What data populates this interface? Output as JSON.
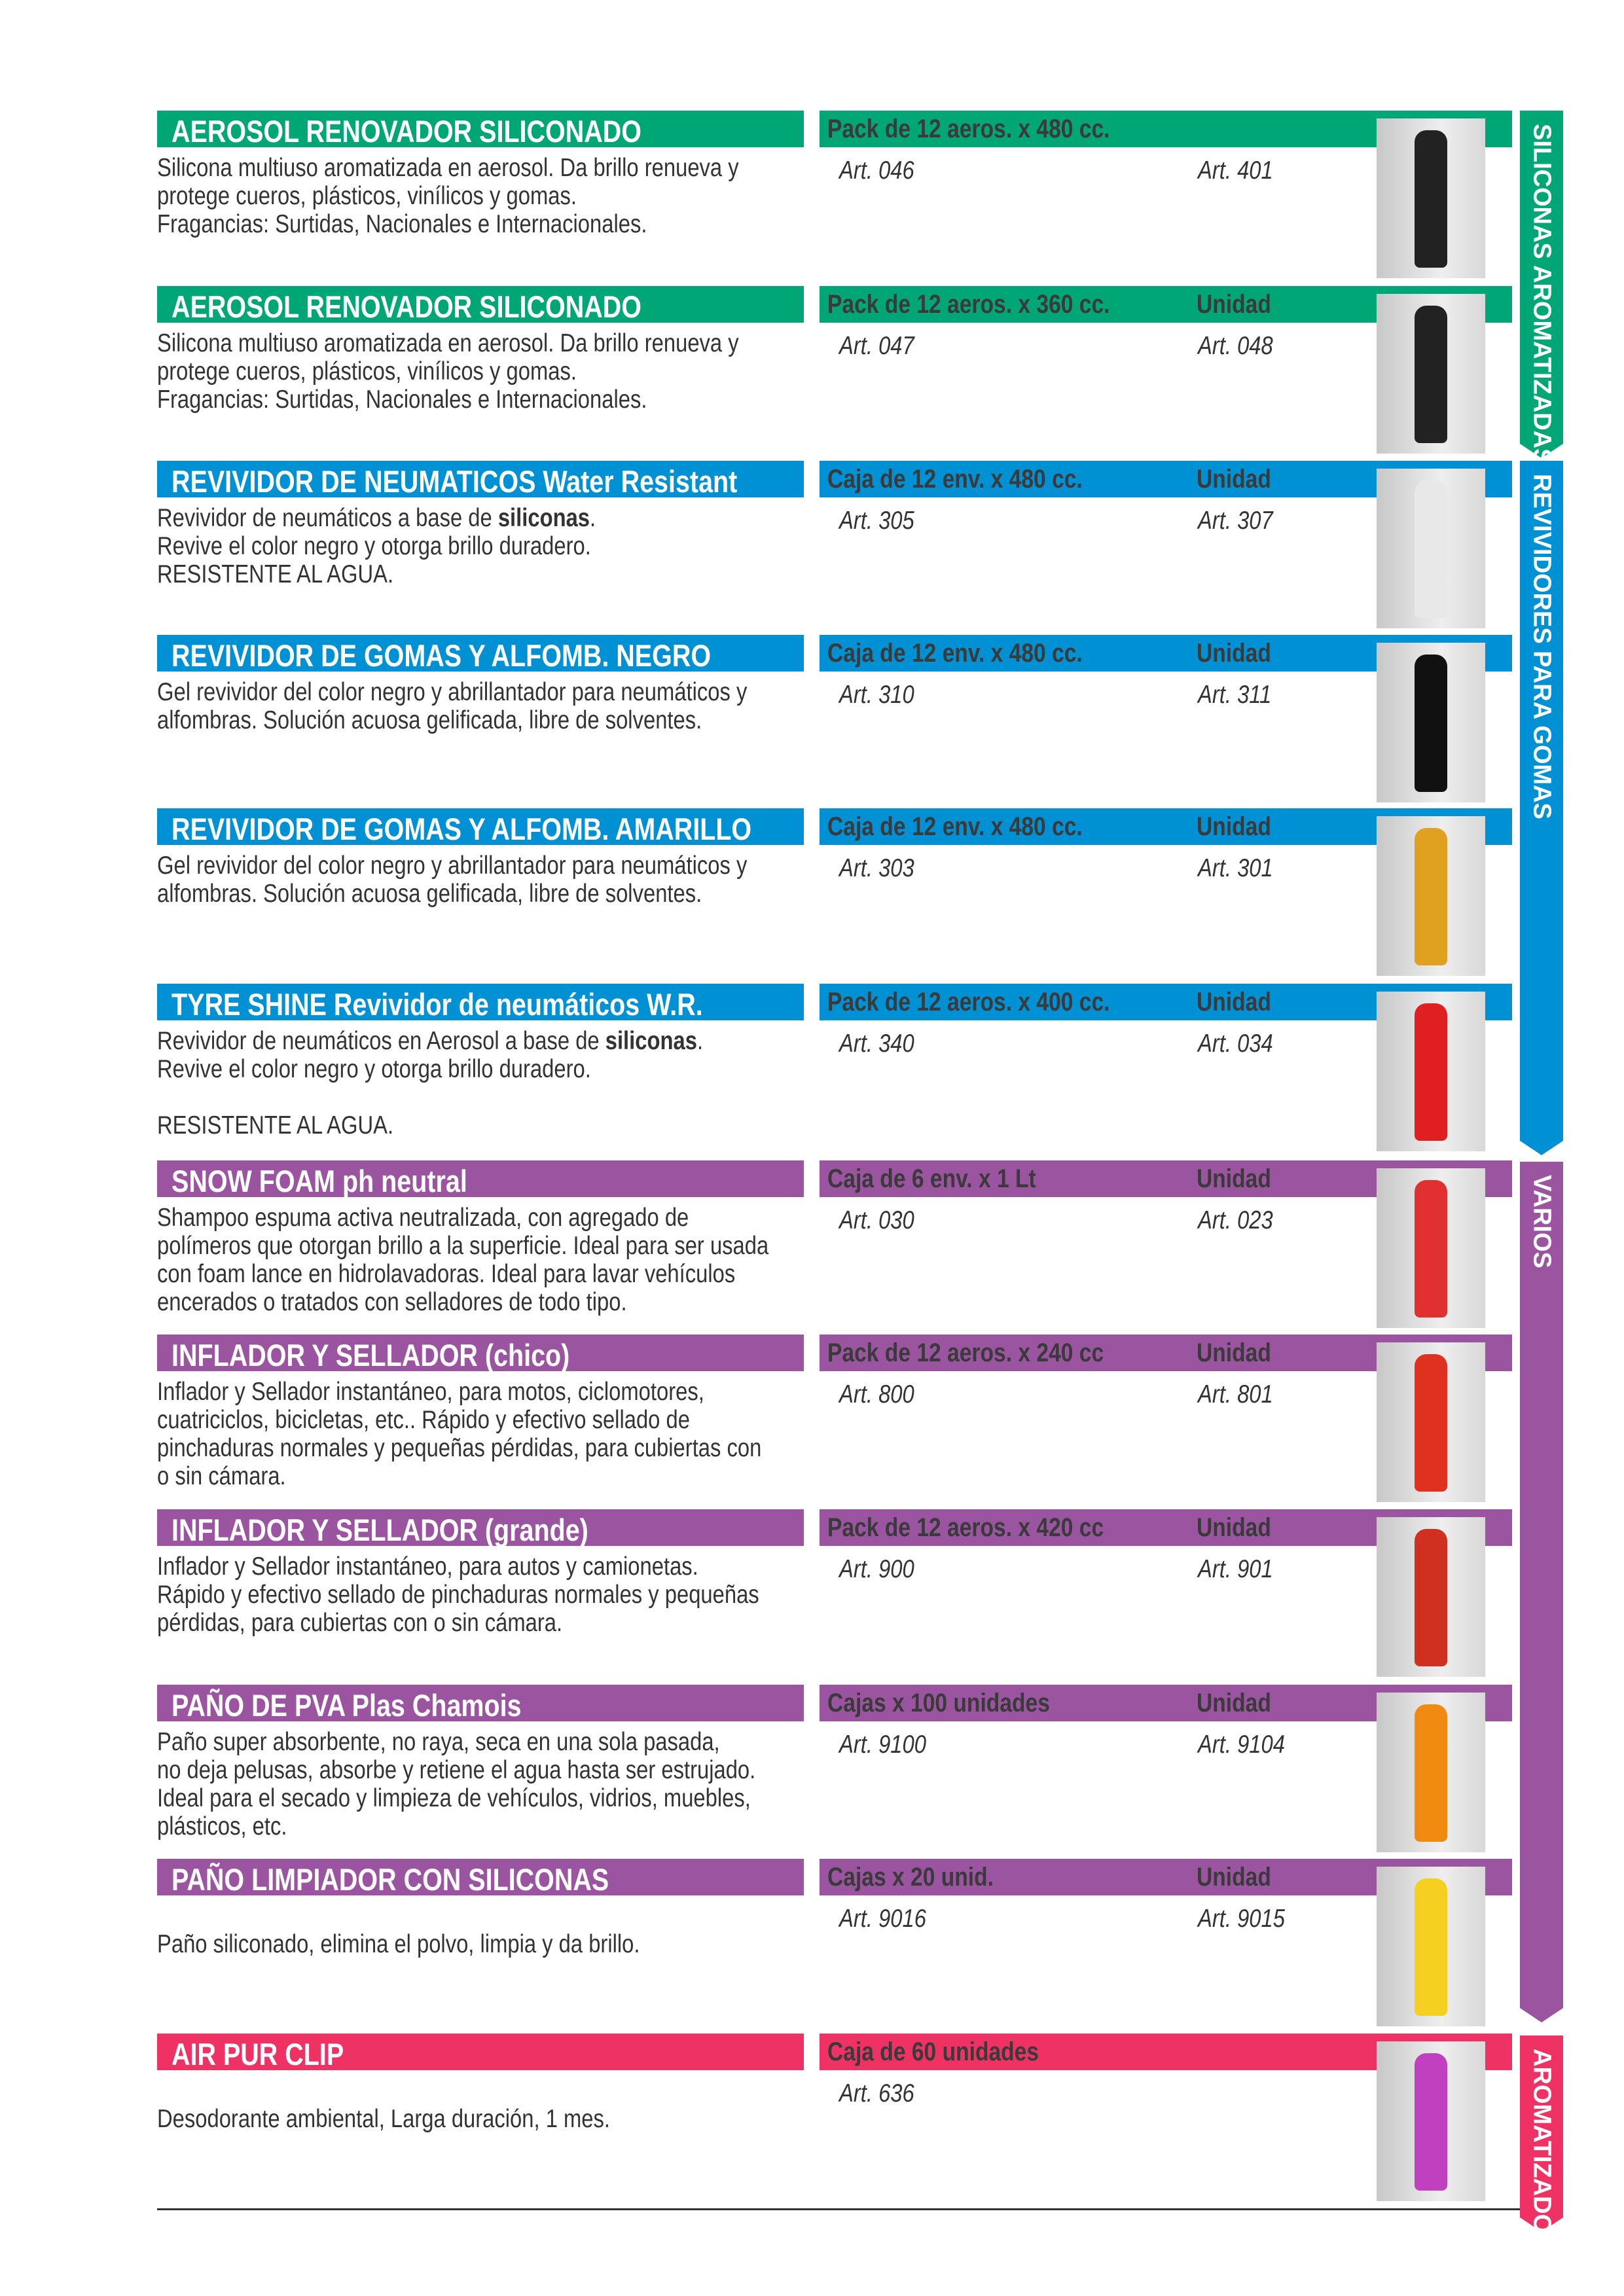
{
  "colors": {
    "green": "#00a676",
    "blue": "#0090d4",
    "purple": "#9b55a0",
    "pink": "#ee3364"
  },
  "sections": [
    {
      "label": "SILICONAS AROMATIZADAS",
      "color": "#00a676"
    },
    {
      "label": "REVIVIDORES PARA GOMAS",
      "color": "#0090d4"
    },
    {
      "label": "VARIOS",
      "color": "#9b55a0"
    },
    {
      "label": "AROMATIZADORES",
      "color": "#ee3364"
    }
  ],
  "products": [
    {
      "title": "AEROSOL RENOVADOR SILICONADO",
      "color": "#00a676",
      "pack": "Pack de 12 aeros. x 480 cc.",
      "unit": "",
      "art1": "Art. 046",
      "art2": "Art. 401",
      "bottle": "#222",
      "lines": [
        "Silicona multiuso aromatizada en aerosol. Da brillo renueva y",
        "protege cueros, plásticos, vinílicos y gomas.",
        "Fragancias: Surtidas, Nacionales e Internacionales."
      ]
    },
    {
      "title": "AEROSOL RENOVADOR SILICONADO",
      "color": "#00a676",
      "pack": "Pack de 12 aeros. x 360 cc.",
      "unit": "Unidad",
      "art1": "Art. 047",
      "art2": "Art. 048",
      "bottle": "#222",
      "lines": [
        "Silicona multiuso aromatizada en aerosol. Da brillo renueva y",
        "protege cueros, plásticos, vinílicos y gomas.",
        "Fragancias: Surtidas, Nacionales e Internacionales."
      ]
    },
    {
      "title": "REVIVIDOR DE NEUMATICOS Water Resistant",
      "color": "#0090d4",
      "pack": "Caja de 12 env. x 480 cc.",
      "unit": "Unidad",
      "art1": "Art. 305",
      "art2": "Art. 307",
      "bottle": "#e8e8e8",
      "lines": [
        "Revividor de neumáticos a base de |siliconas|.",
        "Revive el color negro y otorga brillo duradero.",
        "RESISTENTE AL AGUA."
      ]
    },
    {
      "title": "REVIVIDOR DE GOMAS Y ALFOMB. NEGRO",
      "color": "#0090d4",
      "pack": "Caja de 12 env. x 480 cc.",
      "unit": "Unidad",
      "art1": "Art. 310",
      "art2": "Art. 311",
      "bottle": "#111",
      "lines": [
        "Gel revividor del color negro y abrillantador para neumáticos y",
        "alfombras. Solución acuosa gelificada, libre de solventes."
      ]
    },
    {
      "title": "REVIVIDOR DE GOMAS Y ALFOMB. AMARILLO",
      "color": "#0090d4",
      "pack": "Caja de 12 env. x 480 cc.",
      "unit": "Unidad",
      "art1": "Art. 303",
      "art2": "Art. 301",
      "bottle": "#e0a020",
      "lines": [
        "Gel revividor del color negro y abrillantador para neumáticos y",
        "alfombras. Solución acuosa gelificada, libre de solventes."
      ]
    },
    {
      "title": "TYRE SHINE Revividor de neumáticos W.R.",
      "color": "#0090d4",
      "pack": "Pack de 12 aeros. x 400 cc.",
      "unit": "Unidad",
      "art1": "Art. 340",
      "art2": "Art. 034",
      "bottle": "#e02020",
      "lines": [
        "Revividor de neumáticos en Aerosol a base de |siliconas|.",
        "Revive el color negro y otorga brillo duradero.",
        "",
        "RESISTENTE AL AGUA."
      ]
    },
    {
      "title": "SNOW FOAM ph neutral",
      "color": "#9b55a0",
      "pack": "Caja de 6 env. x 1 Lt",
      "unit": "Unidad",
      "art1": "Art. 030",
      "art2": "Art. 023",
      "bottle": "#e03030",
      "lines": [
        "Shampoo espuma activa neutralizada, con agregado de",
        "polímeros que otorgan brillo a la superficie. Ideal para ser usada",
        "con foam lance en hidrolavadoras. Ideal para lavar vehículos",
        "encerados o tratados con selladores de todo tipo."
      ]
    },
    {
      "title": "INFLADOR Y SELLADOR (chico)",
      "color": "#9b55a0",
      "pack": "Pack de 12 aeros. x 240 cc",
      "unit": "Unidad",
      "art1": "Art. 800",
      "art2": "Art. 801",
      "bottle": "#e03020",
      "lines": [
        "Inflador y Sellador instantáneo, para motos, ciclomotores,",
        "cuatriciclos, bicicletas, etc.. Rápido y efectivo sellado de",
        "pinchaduras normales y pequeñas pérdidas, para cubiertas con",
        "o sin cámara."
      ]
    },
    {
      "title": "INFLADOR Y SELLADOR (grande)",
      "color": "#9b55a0",
      "pack": "Pack de 12 aeros. x 420 cc",
      "unit": "Unidad",
      "art1": "Art. 900",
      "art2": "Art. 901",
      "bottle": "#d03020",
      "lines": [
        "Inflador y Sellador instantáneo, para autos y camionetas.",
        "Rápido y efectivo sellado de pinchaduras normales y pequeñas",
        "pérdidas, para cubiertas con o sin cámara."
      ]
    },
    {
      "title": "PAÑO DE PVA Plas Chamois",
      "color": "#9b55a0",
      "pack": "Cajas x 100 unidades",
      "unit": "Unidad",
      "art1": "Art. 9100",
      "art2": "Art. 9104",
      "bottle": "#f08a10",
      "lines": [
        "Paño super absorbente, no raya, seca en una sola pasada,",
        "no deja pelusas, absorbe y retiene el agua hasta ser estrujado.",
        "Ideal para el secado y limpieza de vehículos, vidrios, muebles,",
        "plásticos, etc."
      ]
    },
    {
      "title": "PAÑO LIMPIADOR CON SILICONAS",
      "color": "#9b55a0",
      "pack": "Cajas x 20 unid.",
      "unit": "Unidad",
      "art1": "Art. 9016",
      "art2": "Art. 9015",
      "bottle": "#f5d020",
      "lines": [
        "",
        "Paño siliconado, elimina el polvo, limpia y da brillo."
      ]
    },
    {
      "title": "AIR PUR CLIP",
      "color": "#ee3364",
      "pack": "Caja de 60 unidades",
      "unit": "",
      "art1": "Art. 636",
      "art2": "",
      "bottle": "#c040c0",
      "lines": [
        "",
        "Desodorante ambiental, Larga duración, 1 mes."
      ]
    }
  ]
}
